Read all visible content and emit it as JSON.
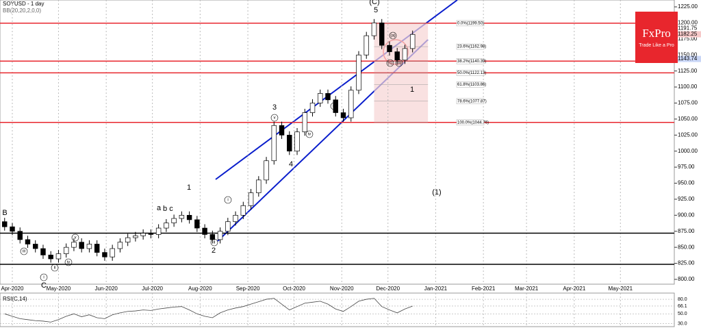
{
  "chart_data": {
    "type": "candlestick",
    "title": "SOYUSD - 1 day",
    "subtitle": "BB(20,20,2,0,0)",
    "logo": {
      "title": "FxPro",
      "tagline": "Trade Like a Pro",
      "color": "#e8262d"
    },
    "x": [
      -5,
      0,
      5,
      10,
      15,
      20,
      25,
      30,
      35,
      40,
      45,
      50,
      55,
      60,
      65,
      70,
      75,
      80,
      85,
      90,
      95,
      100,
      105,
      110,
      115,
      120,
      125,
      130,
      135,
      140,
      145,
      150,
      155,
      160,
      165,
      170,
      175,
      180,
      185,
      190,
      195,
      200,
      205,
      210,
      215,
      220,
      225,
      230,
      235,
      240,
      245,
      250,
      255,
      260
    ],
    "open": [
      890,
      882,
      875,
      862,
      855,
      848,
      838,
      832,
      840,
      850,
      858,
      848,
      855,
      842,
      835,
      848,
      858,
      865,
      868,
      872,
      870,
      880,
      888,
      895,
      900,
      893,
      880,
      870,
      862,
      875,
      890,
      900,
      915,
      935,
      955,
      985,
      1040,
      1025,
      1000,
      1030,
      1060,
      1075,
      1090,
      1080,
      1060,
      1052,
      1095,
      1150,
      1180,
      1200,
      1165,
      1155,
      1142,
      1160
    ],
    "high": [
      896,
      888,
      881,
      868,
      861,
      854,
      844,
      846,
      856,
      864,
      864,
      861,
      861,
      848,
      854,
      864,
      871,
      874,
      878,
      878,
      886,
      894,
      901,
      906,
      906,
      899,
      886,
      876,
      881,
      896,
      906,
      921,
      941,
      961,
      991,
      1046,
      1046,
      1031,
      1036,
      1066,
      1081,
      1096,
      1096,
      1086,
      1066,
      1101,
      1156,
      1186,
      1206,
      1206,
      1171,
      1161,
      1166,
      1188
    ],
    "low": [
      876,
      869,
      856,
      849,
      842,
      832,
      826,
      826,
      834,
      844,
      842,
      842,
      836,
      829,
      829,
      842,
      852,
      859,
      862,
      864,
      864,
      874,
      882,
      889,
      887,
      874,
      864,
      856,
      856,
      869,
      884,
      894,
      909,
      929,
      949,
      979,
      1019,
      994,
      994,
      1024,
      1054,
      1069,
      1074,
      1054,
      1046,
      1046,
      1089,
      1144,
      1174,
      1159,
      1149,
      1136,
      1136,
      1154
    ],
    "close": [
      882,
      875,
      862,
      855,
      848,
      838,
      832,
      840,
      850,
      858,
      848,
      855,
      842,
      835,
      848,
      858,
      865,
      868,
      872,
      870,
      880,
      888,
      895,
      900,
      893,
      880,
      870,
      862,
      875,
      890,
      900,
      915,
      935,
      955,
      985,
      1040,
      1025,
      1000,
      1030,
      1060,
      1075,
      1090,
      1080,
      1060,
      1052,
      1095,
      1150,
      1180,
      1200,
      1165,
      1155,
      1142,
      1160,
      1182
    ],
    "up_color": "#ffffff",
    "down_color": "#000000",
    "xlim": [
      -8,
      430
    ],
    "ylim": [
      792.5,
      1235.7
    ],
    "yticks": [
      {
        "value": 800,
        "label": "800.00"
      },
      {
        "value": 825,
        "label": "825.00"
      },
      {
        "value": 850,
        "label": "850.00"
      },
      {
        "value": 875,
        "label": "875.00"
      },
      {
        "value": 900,
        "label": "900.00"
      },
      {
        "value": 925,
        "label": "925.00"
      },
      {
        "value": 950,
        "label": "950.00"
      },
      {
        "value": 975,
        "label": "975.00"
      },
      {
        "value": 1000,
        "label": "1000.00"
      },
      {
        "value": 1025,
        "label": "1025.00"
      },
      {
        "value": 1050,
        "label": "1050.00"
      },
      {
        "value": 1075,
        "label": "1075.00"
      },
      {
        "value": 1100,
        "label": "1100.00"
      },
      {
        "value": 1125,
        "label": "1125.00"
      },
      {
        "value": 1150,
        "label": "1150.00"
      },
      {
        "value": 1175,
        "label": "1175.00"
      },
      {
        "value": 1200,
        "label": "1200.00"
      },
      {
        "value": 1225,
        "label": "1225.00"
      }
    ],
    "xticks": [
      {
        "value": 0,
        "label": "Apr-2020"
      },
      {
        "value": 30,
        "label": "May-2020"
      },
      {
        "value": 61,
        "label": "Jun-2020"
      },
      {
        "value": 91,
        "label": "Jul-2020"
      },
      {
        "value": 122,
        "label": "Aug-2020"
      },
      {
        "value": 153,
        "label": "Sep-2020"
      },
      {
        "value": 183,
        "label": "Oct-2020"
      },
      {
        "value": 214,
        "label": "Nov-2020"
      },
      {
        "value": 244,
        "label": "Dec-2020"
      },
      {
        "value": 275,
        "label": "Jan-2021"
      },
      {
        "value": 306,
        "label": "Feb-2021"
      },
      {
        "value": 334,
        "label": "Mar-2021"
      },
      {
        "value": 365,
        "label": "Apr-2021"
      },
      {
        "value": 395,
        "label": "May-2021"
      }
    ],
    "levels": [
      {
        "price": 1199.5,
        "color": "#e8262d"
      },
      {
        "price": 1140.39,
        "color": "#e8262d"
      },
      {
        "price": 1122.13,
        "color": "#e8262d"
      },
      {
        "price": 1044.76,
        "color": "#e8262d"
      },
      {
        "price": 872,
        "color": "#000000"
      },
      {
        "price": 823.5,
        "color": "#000000"
      }
    ],
    "fib": {
      "start": 235,
      "end": 270,
      "color": "#f6d4d4",
      "levels": [
        {
          "price": 1199.5,
          "label": "0.0%(1199.50)"
        },
        {
          "price": 1162.98,
          "label": "23.6%(1162.98)"
        },
        {
          "price": 1140.39,
          "label": "38.2%(1140.39)"
        },
        {
          "price": 1122.13,
          "label": "50.0%(1122.13)"
        },
        {
          "price": 1103.86,
          "label": "61.8%(1103.86)"
        },
        {
          "price": 1077.87,
          "label": "78.6%(1077.87)"
        },
        {
          "price": 1044.76,
          "label": "100.0%(1044.76)"
        }
      ]
    },
    "price_tags": [
      {
        "value": 1191.75,
        "color": "#ffffff"
      },
      {
        "value": 1182.25,
        "color": "#f6c9c9"
      },
      {
        "value": 1143.74,
        "color": "#c9d6f6"
      }
    ],
    "annotations": [
      "(C)",
      "5",
      "3",
      "4",
      "1",
      "2",
      "B",
      "C",
      "(1)",
      "1",
      "i",
      "ii",
      "iii",
      "iv",
      "v",
      "(a)",
      "(b)",
      "(c)",
      "a",
      "b",
      "c",
      "i",
      "ii",
      "iii",
      "iv",
      "v"
    ],
    "rsi": {
      "title": "RSI(C,14)",
      "ylim": [
        25,
        90
      ],
      "yticks": [
        {
          "value": 80,
          "label": "80.0"
        },
        {
          "value": 66.1,
          "label": "66.1"
        },
        {
          "value": 50,
          "label": "50.0"
        },
        {
          "value": 30,
          "label": "30.0"
        }
      ],
      "values": [
        50,
        45,
        40,
        38,
        36,
        35,
        33,
        38,
        45,
        50,
        44,
        48,
        42,
        40,
        48,
        52,
        55,
        56,
        58,
        57,
        60,
        62,
        64,
        65,
        58,
        50,
        45,
        42,
        52,
        58,
        62,
        65,
        70,
        75,
        80,
        82,
        70,
        58,
        65,
        72,
        74,
        76,
        70,
        60,
        55,
        65,
        76,
        80,
        82,
        65,
        58,
        52,
        60,
        66
      ]
    }
  }
}
